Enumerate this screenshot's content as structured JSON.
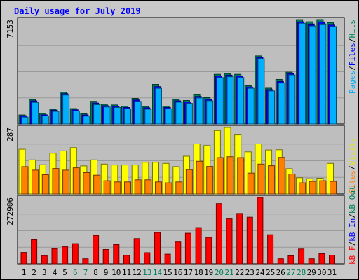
{
  "chart_data": [
    {
      "type": "bar",
      "title": "Daily usage for July 2019",
      "max_label": "7153",
      "categories": [
        "1",
        "2",
        "3",
        "4",
        "5",
        "6",
        "7",
        "8",
        "9",
        "10",
        "11",
        "12",
        "13",
        "14",
        "15",
        "16",
        "17",
        "18",
        "19",
        "20",
        "21",
        "22",
        "23",
        "24",
        "25",
        "26",
        "27",
        "28",
        "29",
        "30",
        "31"
      ],
      "weekend_days": [
        "6",
        "7",
        "13",
        "14",
        "20",
        "21",
        "27",
        "28"
      ],
      "legend": [
        "Pages",
        "Files",
        "Hits"
      ],
      "series": [
        {
          "name": "Hits",
          "color": "#00805c",
          "values": [
            620,
            1670,
            720,
            1010,
            2180,
            1050,
            700,
            1550,
            1350,
            1300,
            1220,
            1750,
            1200,
            2710,
            1220,
            1670,
            1610,
            2000,
            1800,
            3400,
            3450,
            3400,
            2620,
            4660,
            2450,
            3050,
            3550,
            7150,
            7000,
            7153,
            6950
          ]
        },
        {
          "name": "Files",
          "color": "#0000ff",
          "values": [
            560,
            1580,
            630,
            940,
            2080,
            970,
            620,
            1430,
            1250,
            1220,
            1130,
            1640,
            1110,
            2560,
            1130,
            1580,
            1510,
            1880,
            1690,
            3290,
            3340,
            3290,
            2530,
            4560,
            2350,
            2910,
            3450,
            7000,
            6850,
            6990,
            6820
          ]
        },
        {
          "name": "Pages",
          "color": "#00b0ff",
          "values": [
            470,
            1480,
            550,
            860,
            1980,
            890,
            540,
            1320,
            1160,
            1130,
            1040,
            1540,
            1010,
            2440,
            1040,
            1490,
            1410,
            1780,
            1590,
            3180,
            3230,
            3180,
            2440,
            4470,
            2260,
            2800,
            3360,
            6900,
            6710,
            6850,
            6680
          ]
        }
      ]
    },
    {
      "type": "bar",
      "max_label": "287",
      "legend": [
        "Sites",
        "Visits"
      ],
      "series": [
        {
          "name": "Visits",
          "color": "#ffff00",
          "values": [
            193,
            147,
            126,
            176,
            186,
            200,
            121,
            147,
            129,
            125,
            125,
            125,
            137,
            137,
            132,
            118,
            163,
            216,
            209,
            274,
            287,
            255,
            182,
            216,
            190,
            191,
            109,
            70,
            66,
            68,
            132
          ]
        },
        {
          "name": "Sites",
          "color": "#ff8000",
          "values": [
            118,
            103,
            83,
            110,
            103,
            113,
            92,
            81,
            57,
            52,
            52,
            61,
            61,
            52,
            48,
            52,
            105,
            141,
            119,
            157,
            161,
            157,
            90,
            129,
            122,
            158,
            86,
            48,
            54,
            57,
            54
          ]
        }
      ]
    },
    {
      "type": "bar",
      "max_label": "272906",
      "legend": [
        "kB F",
        "kB In",
        "kB Out"
      ],
      "series": [
        {
          "name": "kB F",
          "color": "#ff0000",
          "values": [
            47000,
            99000,
            34000,
            62000,
            70000,
            83000,
            21000,
            117000,
            59000,
            79000,
            35000,
            104000,
            46000,
            129000,
            40000,
            90000,
            126000,
            149000,
            109000,
            248000,
            185000,
            207000,
            192000,
            272906,
            120000,
            21000,
            33000,
            61000,
            21000,
            42000,
            36000
          ]
        }
      ]
    }
  ]
}
